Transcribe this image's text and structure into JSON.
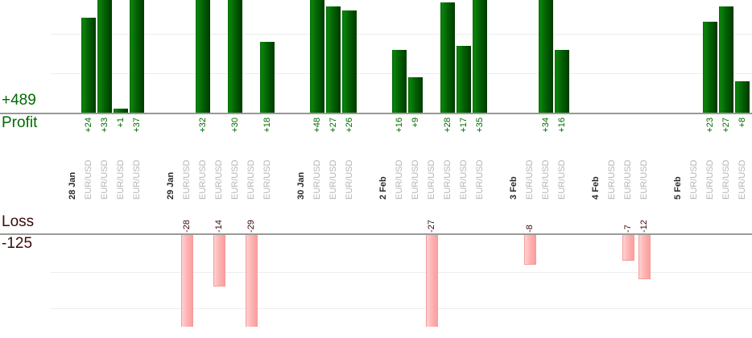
{
  "summary": {
    "total_profit": "+489",
    "profit_label": "Profit",
    "loss_label": "Loss",
    "total_loss": "-125"
  },
  "colors": {
    "profit_text": "#006b00",
    "loss_text": "#3c0b0b",
    "date_text": "#2b2b2b",
    "symbol_text": "#b5b5b5",
    "axis_line": "#999999",
    "gridline": "#ededed",
    "green_bar_left": "#056e05",
    "green_bar_light": "#0a820a",
    "green_bar_mid": "#025c02",
    "green_bar_dark": "#003a00",
    "pink_bar_light": "#ffd2d2",
    "pink_bar_mid": "#feb5b5",
    "pink_bar_dark": "#fb9e9e",
    "pink_bar_border": "#f49c9c"
  },
  "chart_data": {
    "type": "bar",
    "title": "",
    "symbol": "EUR/USD",
    "profit_section": {
      "axis_title": "Profit",
      "total": "+489",
      "gridline_step": 10,
      "visible_range": [
        0,
        28.5
      ],
      "note_clipped_at_top": true
    },
    "loss_section": {
      "axis_title": "Loss",
      "total": "-125",
      "gridline_step": 10,
      "visible_range": [
        0,
        -25
      ],
      "note_clipped_at_bottom": true
    },
    "groups": [
      {
        "date": "28 Jan",
        "trades": [
          {
            "value": 24,
            "label": "+24"
          },
          {
            "value": 33,
            "label": "+33"
          },
          {
            "value": 1,
            "label": "+1"
          },
          {
            "value": 37,
            "label": "+37"
          }
        ]
      },
      {
        "date": "29 Jan",
        "trades": [
          {
            "value": -28,
            "label": "-28"
          },
          {
            "value": 32,
            "label": "+32"
          },
          {
            "value": -14,
            "label": "-14"
          },
          {
            "value": 30,
            "label": "+30"
          },
          {
            "value": -29,
            "label": "-29"
          },
          {
            "value": 18,
            "label": "+18"
          }
        ]
      },
      {
        "date": "30 Jan",
        "trades": [
          {
            "value": 48,
            "label": "+48"
          },
          {
            "value": 27,
            "label": "+27"
          },
          {
            "value": 26,
            "label": "+26"
          }
        ]
      },
      {
        "date": "2 Feb",
        "trades": [
          {
            "value": 16,
            "label": "+16"
          },
          {
            "value": 9,
            "label": "+9"
          },
          {
            "value": -27,
            "label": "-27"
          },
          {
            "value": 28,
            "label": "+28"
          },
          {
            "value": 17,
            "label": "+17"
          },
          {
            "value": 35,
            "label": "+35"
          }
        ]
      },
      {
        "date": "3 Feb",
        "trades": [
          {
            "value": -8,
            "label": "-8"
          },
          {
            "value": 34,
            "label": "+34"
          },
          {
            "value": 16,
            "label": "+16"
          }
        ]
      },
      {
        "date": "4 Feb",
        "trades": [
          null,
          {
            "value": -7,
            "label": "-7"
          },
          {
            "value": -12,
            "label": "-12"
          }
        ]
      },
      {
        "date": "5 Feb",
        "trades": [
          null,
          {
            "value": 23,
            "label": "+23"
          },
          {
            "value": 27,
            "label": "+27"
          },
          {
            "value": 8,
            "label": "+8"
          }
        ]
      }
    ]
  }
}
